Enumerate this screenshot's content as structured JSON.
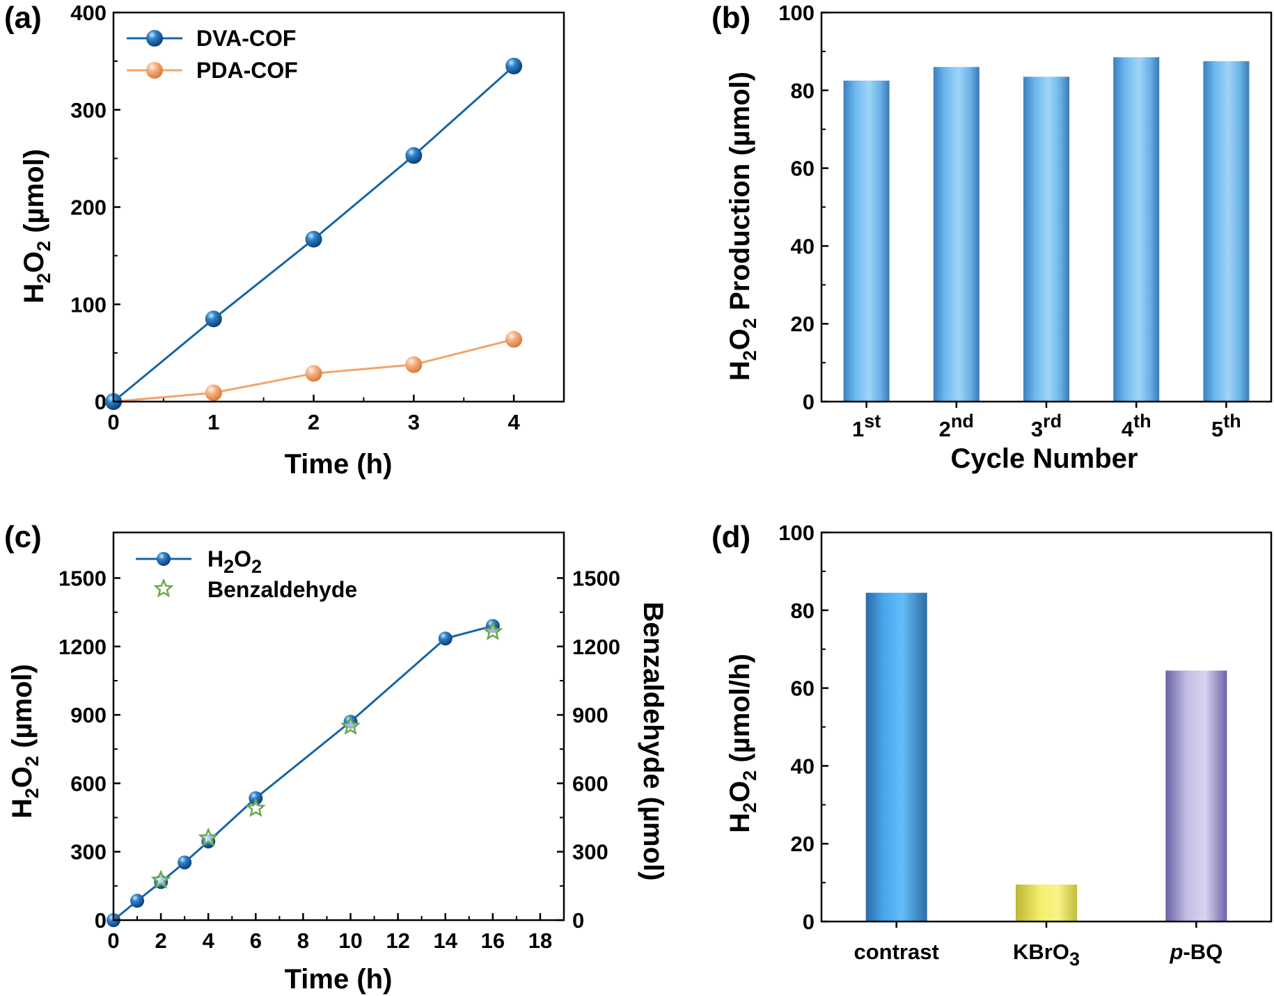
{
  "chart_data": [
    {
      "panel": "(a)",
      "type": "line",
      "xlabel": "Time (h)",
      "ylabel": "H2O2 (µmol)",
      "ylabel_parts": {
        "pre": "H",
        "sub1": "2",
        "mid": "O",
        "sub2": "2",
        "post": " (µmol)"
      },
      "xlim": [
        0,
        4.5
      ],
      "ylim": [
        0,
        400
      ],
      "xticks": [
        0,
        1,
        2,
        3,
        4
      ],
      "yticks": [
        0,
        100,
        200,
        300,
        400
      ],
      "legend_position": "top-left",
      "series": [
        {
          "name": "DVA-COF",
          "color": "#1565a6",
          "x": [
            0,
            1,
            2,
            3,
            4
          ],
          "y": [
            0,
            85,
            167,
            253,
            345
          ]
        },
        {
          "name": "PDA-COF",
          "color": "#f2a46b",
          "x": [
            0,
            1,
            2,
            3,
            4
          ],
          "y": [
            0,
            9,
            29,
            38,
            64
          ]
        }
      ]
    },
    {
      "panel": "(b)",
      "type": "bar",
      "xlabel": "Cycle Number",
      "ylabel": "H2O2 Production (µmol)",
      "ylabel_parts": {
        "pre": "H",
        "sub1": "2",
        "mid": "O",
        "sub2": "2",
        "post": " Production (µmol)"
      },
      "ylim": [
        0,
        100
      ],
      "yticks": [
        0,
        20,
        40,
        60,
        80,
        100
      ],
      "categories": [
        {
          "base": "1",
          "sup": "st"
        },
        {
          "base": "2",
          "sup": "nd"
        },
        {
          "base": "3",
          "sup": "rd"
        },
        {
          "base": "4",
          "sup": "th"
        },
        {
          "base": "5",
          "sup": "th"
        }
      ],
      "values": [
        82.5,
        86,
        83.5,
        88.5,
        87.5
      ],
      "bar_color": "#5aa8e0"
    },
    {
      "panel": "(c)",
      "type": "line",
      "xlabel": "Time (h)",
      "ylabel": "H2O2 (µmol)",
      "ylabel_parts": {
        "pre": "H",
        "sub1": "2",
        "mid": "O",
        "sub2": "2",
        "post": " (µmol)"
      },
      "y2label": "Benzaldehyde (µmol)",
      "xlim": [
        0,
        19
      ],
      "ylim": [
        0,
        1700
      ],
      "xticks": [
        0,
        2,
        4,
        6,
        8,
        10,
        12,
        14,
        16,
        18
      ],
      "yticks": [
        0,
        300,
        600,
        900,
        1200,
        1500
      ],
      "legend_position": "top-left",
      "series": [
        {
          "name": "H2O2",
          "name_parts": {
            "pre": "H",
            "sub1": "2",
            "mid": "O",
            "sub2": "2"
          },
          "marker": "circle",
          "color": "#1565a6",
          "x": [
            0,
            1,
            2,
            3,
            4,
            6,
            10,
            14,
            16
          ],
          "y": [
            0,
            85,
            167,
            253,
            345,
            535,
            870,
            1235,
            1290
          ]
        },
        {
          "name": "Benzaldehyde",
          "marker": "star",
          "color": "#6aa84f",
          "x": [
            2,
            4,
            6,
            10,
            16
          ],
          "y": [
            175,
            360,
            490,
            850,
            1265
          ]
        }
      ]
    },
    {
      "panel": "(d)",
      "type": "bar",
      "ylabel": "H2O2 (µmol/h)",
      "ylabel_parts": {
        "pre": "H",
        "sub1": "2",
        "mid": "O",
        "sub2": "2",
        "post": " (µmol/h)"
      },
      "ylim": [
        0,
        100
      ],
      "yticks": [
        0,
        20,
        40,
        60,
        80,
        100
      ],
      "categories": [
        {
          "pre": "",
          "italic": "",
          "base": "contrast",
          "sub": ""
        },
        {
          "pre": "",
          "italic": "",
          "base": "KBrO",
          "sub": "3"
        },
        {
          "pre": "",
          "italic": "p",
          "base": "-BQ",
          "sub": ""
        }
      ],
      "values": [
        84.5,
        9.5,
        64.5
      ],
      "bar_colors": [
        "#3a9be3",
        "#e9e45a",
        "#9d96cf"
      ]
    }
  ]
}
